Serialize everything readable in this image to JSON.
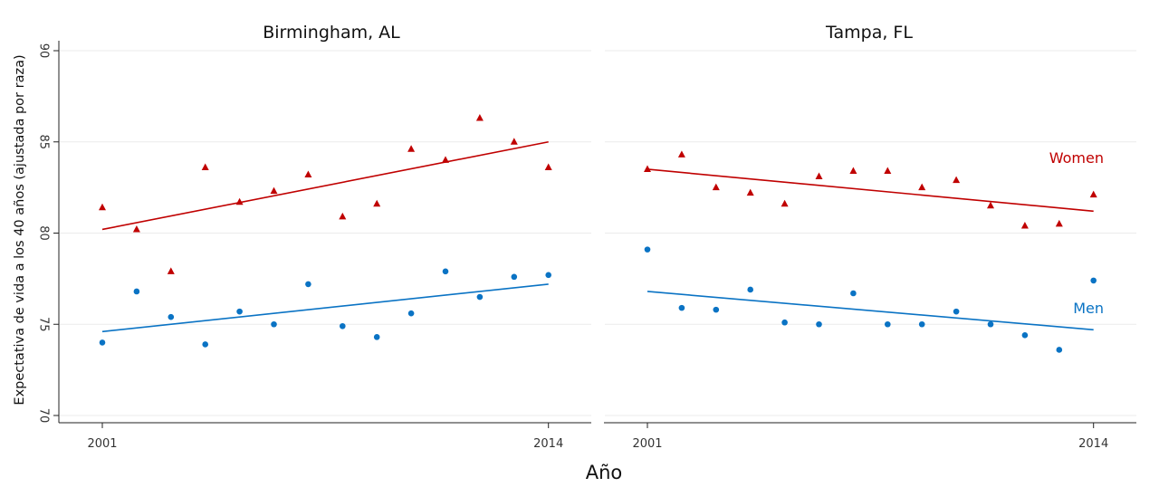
{
  "chart_data": {
    "type": "scatter",
    "xlabel": "Año",
    "ylabel": "Expectativa de vida a los 40 años (ajustada por raza)",
    "ylim": [
      70,
      90
    ],
    "yticks": [
      70,
      75,
      80,
      85,
      90
    ],
    "xlim": [
      2000.5,
      2014.5
    ],
    "xticks": [
      2001,
      2014
    ],
    "grid": true,
    "colors": {
      "women": "#c00000",
      "men": "#0a73c4"
    },
    "panels": [
      {
        "title": "Birmingham, AL",
        "series": [
          {
            "key": "women",
            "marker": "triangle",
            "x": [
              2001,
              2002,
              2003,
              2004,
              2005,
              2006,
              2007,
              2008,
              2009,
              2010,
              2011,
              2012,
              2013,
              2014
            ],
            "y": [
              81.4,
              80.2,
              77.9,
              83.6,
              81.7,
              82.3,
              83.2,
              80.9,
              81.6,
              84.6,
              84.0,
              86.3,
              85.0,
              83.6
            ],
            "trend": [
              80.2,
              85.0
            ]
          },
          {
            "key": "men",
            "marker": "circle",
            "x": [
              2001,
              2002,
              2003,
              2004,
              2005,
              2006,
              2007,
              2008,
              2009,
              2010,
              2011,
              2012,
              2013,
              2014
            ],
            "y": [
              74.0,
              76.8,
              75.4,
              73.9,
              75.7,
              75.0,
              77.2,
              74.9,
              74.3,
              75.6,
              77.9,
              76.5,
              77.6,
              77.7
            ],
            "trend": [
              74.6,
              77.2
            ]
          }
        ]
      },
      {
        "title": "Tampa, FL",
        "series": [
          {
            "key": "women",
            "label": "Women",
            "marker": "triangle",
            "x": [
              2001,
              2002,
              2003,
              2004,
              2005,
              2006,
              2007,
              2008,
              2009,
              2010,
              2011,
              2012,
              2013,
              2014
            ],
            "y": [
              83.5,
              84.3,
              82.5,
              82.2,
              81.6,
              83.1,
              83.4,
              83.4,
              82.5,
              82.9,
              81.5,
              80.4,
              80.5,
              82.1
            ],
            "trend": [
              83.5,
              81.2
            ]
          },
          {
            "key": "men",
            "label": "Men",
            "marker": "circle",
            "x": [
              2001,
              2002,
              2003,
              2004,
              2005,
              2006,
              2007,
              2008,
              2009,
              2010,
              2011,
              2012,
              2013,
              2014
            ],
            "y": [
              79.1,
              75.9,
              75.8,
              76.9,
              75.1,
              75.0,
              76.7,
              75.0,
              75.0,
              75.7,
              75.0,
              74.4,
              73.6,
              77.4
            ],
            "trend": [
              76.8,
              74.7
            ]
          }
        ]
      }
    ]
  }
}
